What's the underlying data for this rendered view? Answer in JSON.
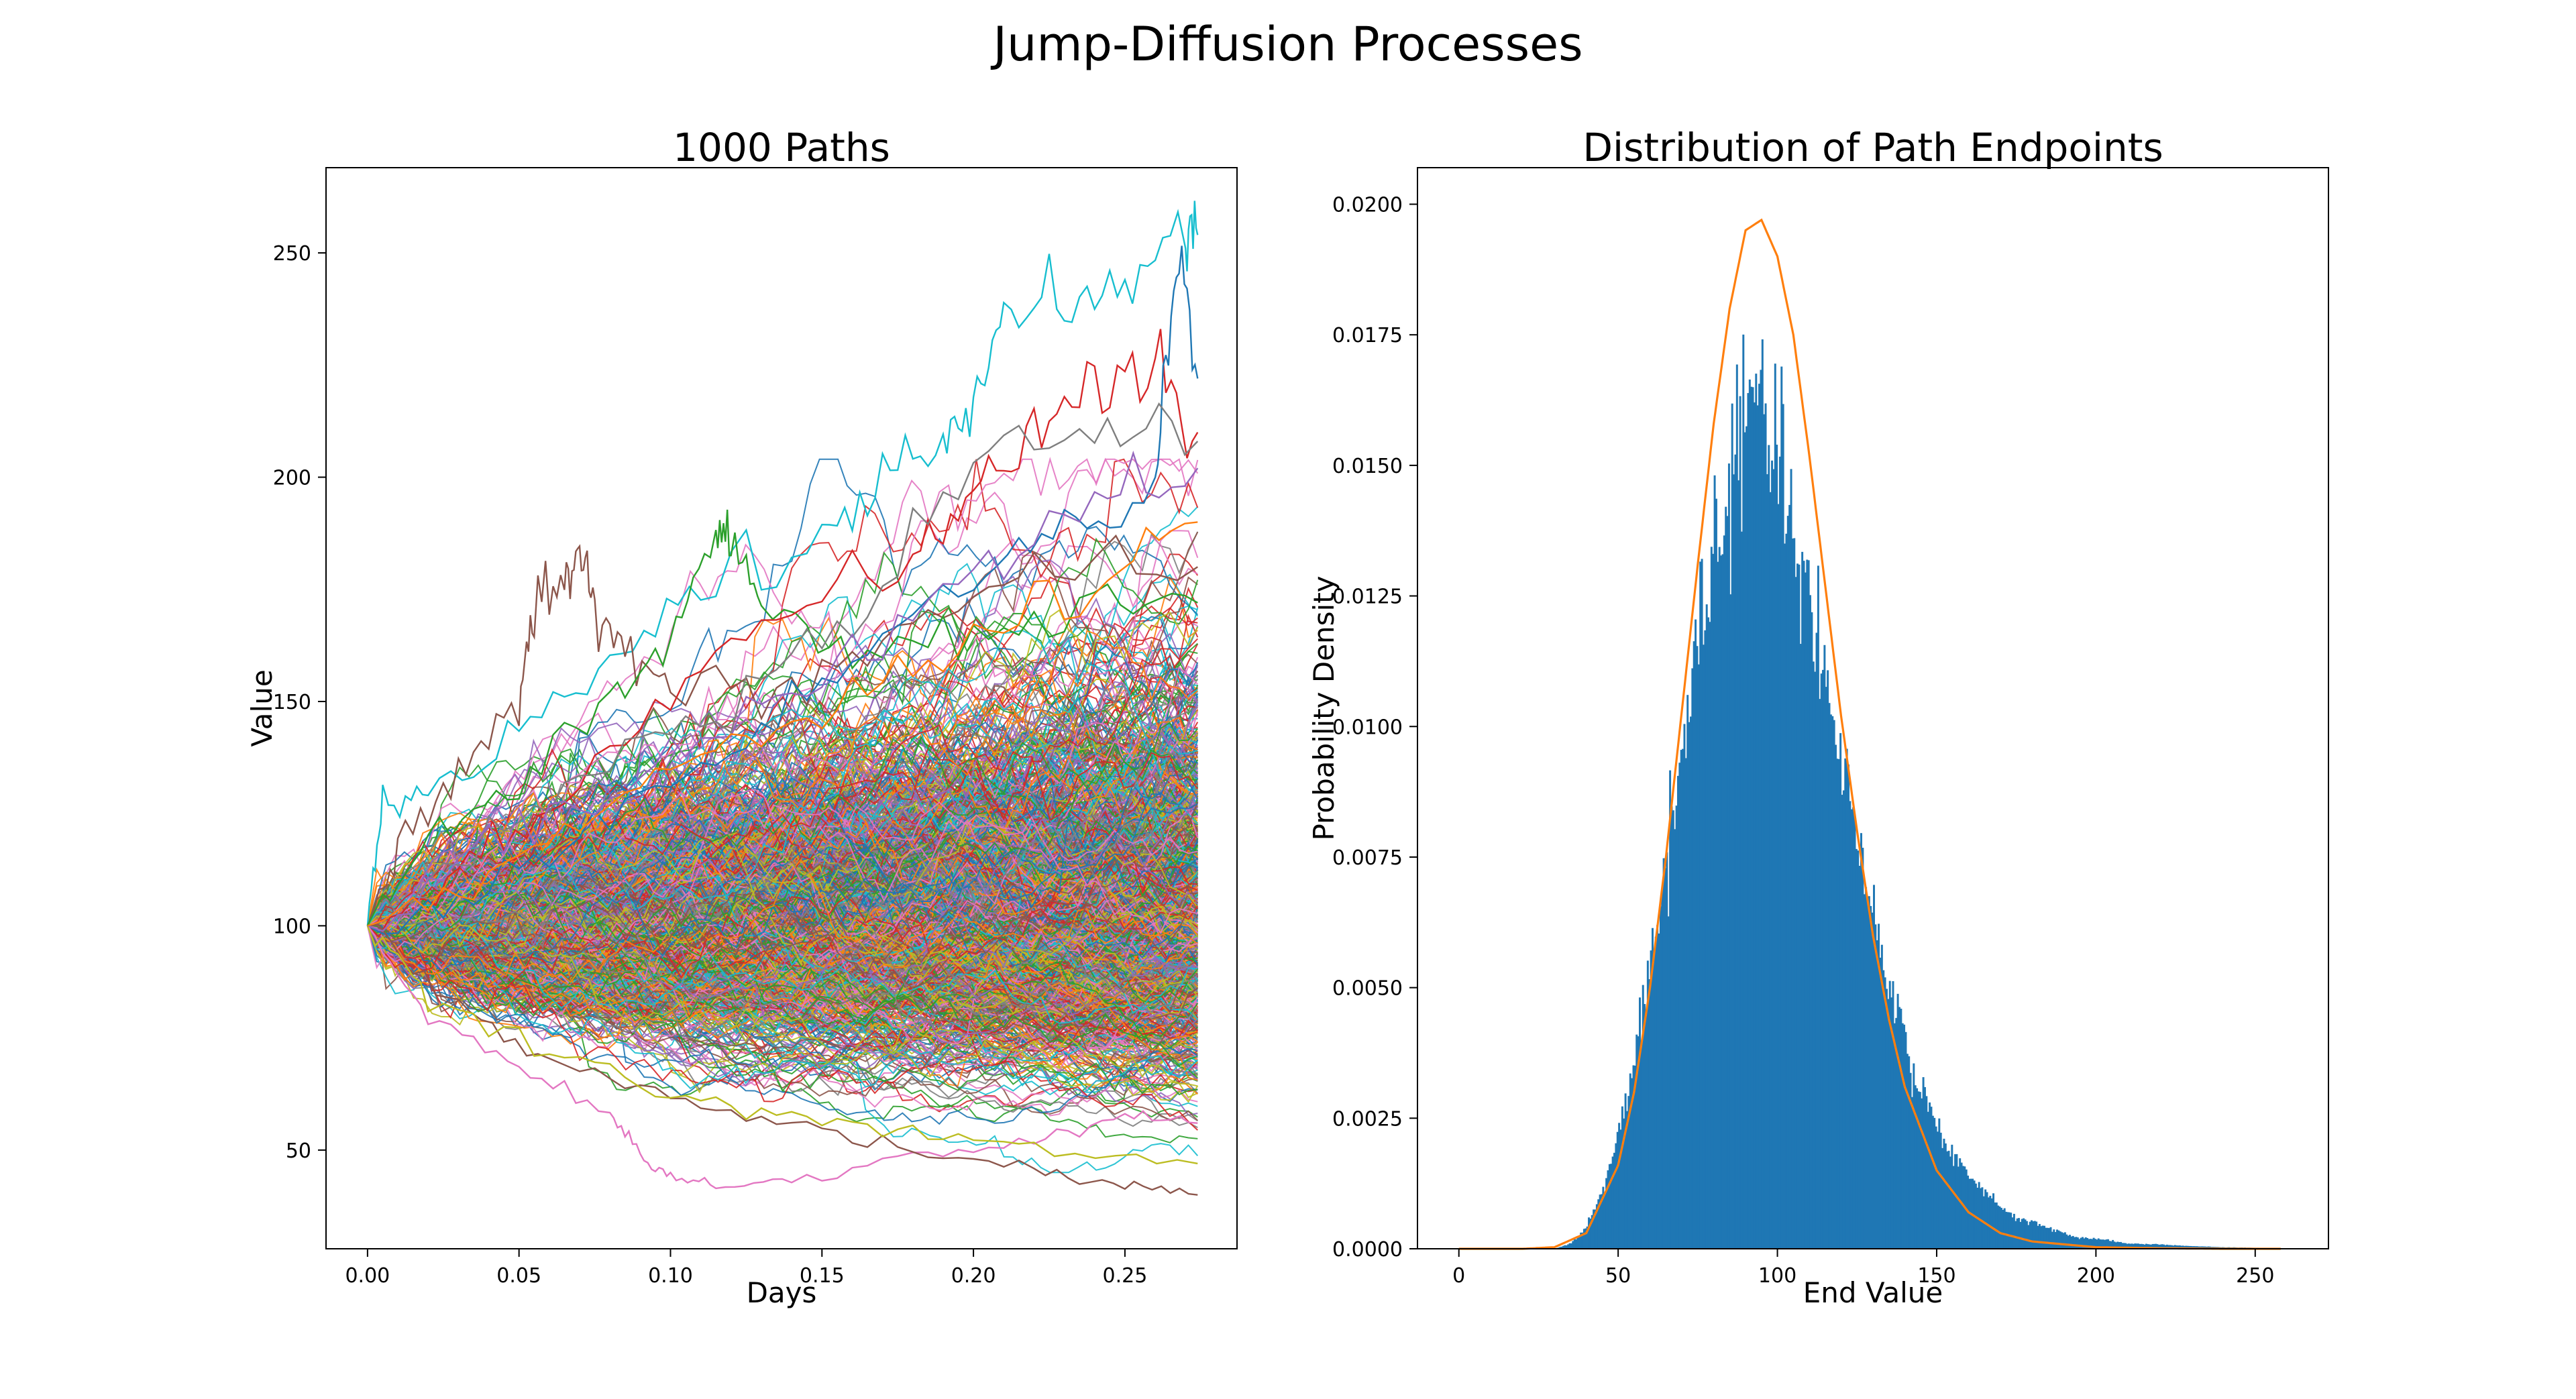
{
  "figure": {
    "suptitle": "Jump-Diffusion Processes"
  },
  "chart_data": [
    {
      "type": "line",
      "title": "1000 Paths",
      "xlabel": "Days",
      "ylabel": "Value",
      "xlim": [
        -0.0137,
        0.287
      ],
      "ylim": [
        28,
        269
      ],
      "xticks": [
        0.0,
        0.05,
        0.1,
        0.15,
        0.2,
        0.25
      ],
      "xtick_labels": [
        "0.00",
        "0.05",
        "0.10",
        "0.15",
        "0.20",
        "0.25"
      ],
      "yticks": [
        50,
        100,
        150,
        200,
        250
      ],
      "ytick_labels": [
        "50",
        "100",
        "150",
        "200",
        "250"
      ],
      "grid": false,
      "legend": "none",
      "n_paths": 1000,
      "x_start": 0.0,
      "x_end": 0.274,
      "start_value": 100,
      "endpoint_range": [
        39,
        254
      ],
      "highlighted_paths": [
        {
          "color": "#17becf",
          "x": [
            0.0,
            0.005,
            0.02,
            0.05,
            0.08,
            0.11,
            0.15,
            0.17,
            0.19,
            0.2,
            0.21,
            0.23,
            0.25,
            0.27,
            0.274
          ],
          "y": [
            100,
            127,
            129,
            142,
            160,
            176,
            186,
            200,
            210,
            214,
            237,
            241,
            246,
            253,
            254
          ]
        },
        {
          "color": "#8c564b",
          "x": [
            0.0,
            0.01,
            0.03,
            0.05,
            0.055,
            0.065,
            0.07,
            0.075,
            0.085,
            0.1,
            0.14,
            0.18,
            0.22,
            0.274
          ],
          "y": [
            100,
            118,
            132,
            150,
            170,
            178,
            185,
            170,
            162,
            154,
            150,
            168,
            180,
            180
          ]
        },
        {
          "color": "#2ca02c",
          "x": [
            0.0,
            0.02,
            0.05,
            0.08,
            0.1,
            0.115,
            0.12,
            0.13,
            0.16,
            0.2,
            0.24,
            0.274
          ],
          "y": [
            100,
            118,
            132,
            150,
            165,
            188,
            186,
            172,
            160,
            166,
            170,
            172
          ]
        },
        {
          "color": "#d62728",
          "x": [
            0.0,
            0.03,
            0.06,
            0.1,
            0.14,
            0.18,
            0.2,
            0.22,
            0.24,
            0.26,
            0.274
          ],
          "y": [
            100,
            112,
            128,
            150,
            174,
            182,
            198,
            205,
            222,
            224,
            210
          ]
        },
        {
          "color": "#1f77b4",
          "x": [
            0.0,
            0.04,
            0.08,
            0.12,
            0.16,
            0.2,
            0.23,
            0.26,
            0.267,
            0.274
          ],
          "y": [
            100,
            108,
            125,
            138,
            160,
            178,
            190,
            198,
            246,
            222
          ]
        },
        {
          "color": "#e377c2",
          "x": [
            0.0,
            0.02,
            0.05,
            0.08,
            0.09,
            0.1,
            0.115,
            0.14,
            0.18,
            0.22,
            0.25,
            0.274
          ],
          "y": [
            100,
            78,
            68,
            58,
            48,
            44,
            42,
            44,
            48,
            52,
            58,
            56
          ]
        },
        {
          "color": "#8c564b",
          "x": [
            0.0,
            0.03,
            0.06,
            0.1,
            0.14,
            0.18,
            0.22,
            0.25,
            0.274
          ],
          "y": [
            100,
            82,
            70,
            62,
            55,
            50,
            46,
            42,
            40
          ]
        },
        {
          "color": "#bcbd22",
          "x": [
            0.0,
            0.02,
            0.06,
            0.1,
            0.14,
            0.18,
            0.22,
            0.274
          ],
          "y": [
            100,
            84,
            72,
            63,
            58,
            54,
            50,
            47
          ]
        },
        {
          "color": "#7f7f7f",
          "x": [
            0.0,
            0.04,
            0.08,
            0.12,
            0.16,
            0.2,
            0.24,
            0.274
          ],
          "y": [
            100,
            120,
            138,
            150,
            170,
            204,
            212,
            208
          ]
        },
        {
          "color": "#9467bd",
          "x": [
            0.0,
            0.04,
            0.08,
            0.12,
            0.16,
            0.2,
            0.24,
            0.274
          ],
          "y": [
            100,
            118,
            130,
            145,
            160,
            178,
            196,
            202
          ]
        },
        {
          "color": "#ff7f0e",
          "x": [
            0.0,
            0.04,
            0.08,
            0.12,
            0.16,
            0.2,
            0.24,
            0.274
          ],
          "y": [
            100,
            112,
            126,
            140,
            150,
            164,
            176,
            190
          ]
        }
      ]
    },
    {
      "type": "histogram",
      "title": "Distribution of Path Endpoints",
      "xlabel": "End Value",
      "ylabel": "Probability Density",
      "xlim": [
        -13,
        273
      ],
      "ylim": [
        0,
        0.0207
      ],
      "xticks": [
        0,
        50,
        100,
        150,
        200,
        250
      ],
      "xtick_labels": [
        "0",
        "50",
        "100",
        "150",
        "200",
        "250"
      ],
      "yticks": [
        0.0,
        0.0025,
        0.005,
        0.0075,
        0.01,
        0.0125,
        0.015,
        0.0175,
        0.02
      ],
      "ytick_labels": [
        "0.0000",
        "0.0025",
        "0.0050",
        "0.0075",
        "0.0100",
        "0.0125",
        "0.0150",
        "0.0175",
        "0.0200"
      ],
      "grid": false,
      "legend": "none",
      "series": [
        {
          "type": "bar",
          "color": "#1f77b4",
          "x": [
            30,
            35,
            40,
            45,
            50,
            55,
            60,
            65,
            70,
            75,
            80,
            85,
            90,
            95,
            100,
            105,
            110,
            115,
            120,
            125,
            130,
            135,
            140,
            145,
            150,
            155,
            160,
            165,
            170,
            175,
            180,
            185,
            190,
            195,
            200,
            205,
            210,
            220,
            230,
            240,
            250,
            258
          ],
          "y": [
            0.0,
            0.0001,
            0.0004,
            0.0011,
            0.0022,
            0.0036,
            0.0054,
            0.0075,
            0.0096,
            0.0117,
            0.0135,
            0.0148,
            0.0156,
            0.0158,
            0.0152,
            0.014,
            0.0124,
            0.0108,
            0.0092,
            0.0078,
            0.0063,
            0.005,
            0.004,
            0.0031,
            0.0024,
            0.0018,
            0.0014,
            0.0011,
            0.0008,
            0.0006,
            0.0005,
            0.0004,
            0.0003,
            0.0002,
            0.0002,
            0.00015,
            0.0001,
            8e-05,
            5e-05,
            3e-05,
            2e-05,
            1e-05
          ]
        },
        {
          "type": "line",
          "color": "#ff7f0e",
          "x": [
            0,
            20,
            30,
            40,
            50,
            55,
            60,
            65,
            70,
            75,
            80,
            85,
            90,
            95,
            100,
            105,
            110,
            115,
            120,
            125,
            130,
            135,
            140,
            150,
            160,
            170,
            180,
            200,
            220,
            240,
            258
          ],
          "y": [
            0.0,
            0.0,
            3e-05,
            0.0003,
            0.0016,
            0.003,
            0.005,
            0.0075,
            0.0103,
            0.0131,
            0.0158,
            0.018,
            0.0195,
            0.0197,
            0.019,
            0.0175,
            0.0152,
            0.0127,
            0.0102,
            0.008,
            0.006,
            0.0044,
            0.0031,
            0.0015,
            0.0007,
            0.0003,
            0.00014,
            3e-05,
            1e-05,
            0.0,
            0.0
          ]
        }
      ]
    }
  ]
}
